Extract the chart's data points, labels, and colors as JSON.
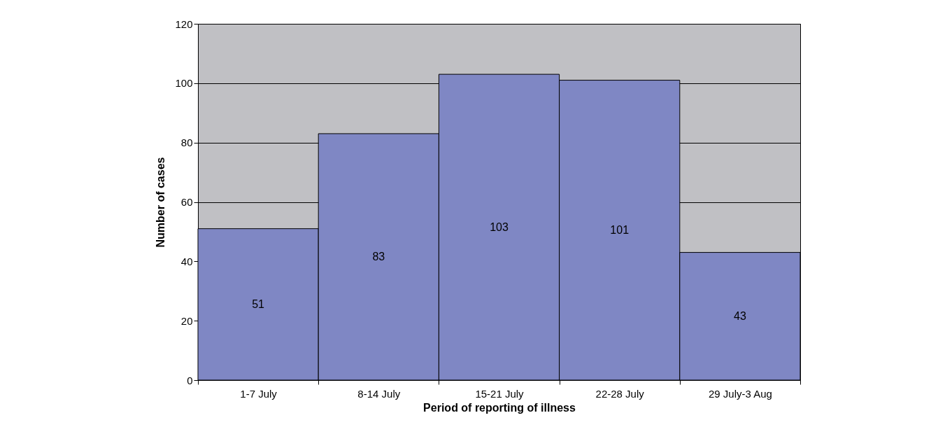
{
  "chart_data": {
    "type": "bar",
    "xlabel": "Period of reporting of  illness",
    "ylabel": "Number of cases",
    "categories": [
      "1-7 July",
      "8-14 July",
      "15-21 July",
      "22-28 July",
      "29 July-3 Aug"
    ],
    "values": [
      51,
      83,
      103,
      101,
      43
    ],
    "color": "#7f87c4",
    "ylim": [
      0,
      120
    ],
    "yticks": [
      0,
      20,
      40,
      60,
      80,
      100,
      120
    ],
    "grid": "y",
    "data_labels": true
  }
}
